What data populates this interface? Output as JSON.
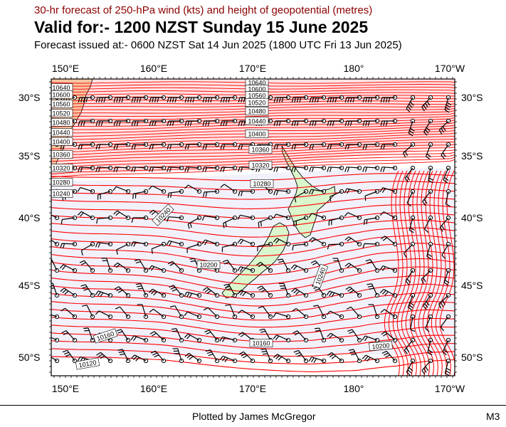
{
  "header": {
    "subtitle": "30-hr forecast of 250-hPa wind (kts) and height of geopotential (metres)",
    "title": "Valid for:- 1200 NZST Sunday 15 June 2025",
    "issued": "Forecast issued at:- 0600 NZST Sat 14 Jun 2025 (1800 UTC Fri 13 Jun 2025)"
  },
  "axes": {
    "lon_labels": [
      "150°E",
      "160°E",
      "170°E",
      "180°",
      "170°W"
    ],
    "lat_labels": [
      "30°S",
      "35°S",
      "40°S",
      "45°S",
      "50°S"
    ]
  },
  "map": {
    "region": "New Zealand and Tasman Sea",
    "colors": {
      "contour": "#ff0000",
      "jet_fill": "#ffe2e2",
      "low_fill": "#f1f1fc",
      "land": "#d9f7cc",
      "australia_land": "#f4c6a2",
      "wind_barb": "#000000"
    },
    "contour_labels_west": [
      "10640",
      "10600",
      "10560",
      "10520",
      "10480",
      "10440",
      "10400",
      "10360",
      "10320",
      "10280",
      "10240"
    ],
    "contour_labels_center": [
      "10640",
      "10600",
      "10560",
      "10520",
      "10480",
      "10440",
      "10400",
      "10360",
      "10320",
      "10280",
      "10240",
      "10200",
      "10240",
      "10160",
      "10200",
      "10160",
      "10120"
    ]
  },
  "footer": {
    "credit": "Plotted by James McGregor",
    "code": "M3"
  }
}
